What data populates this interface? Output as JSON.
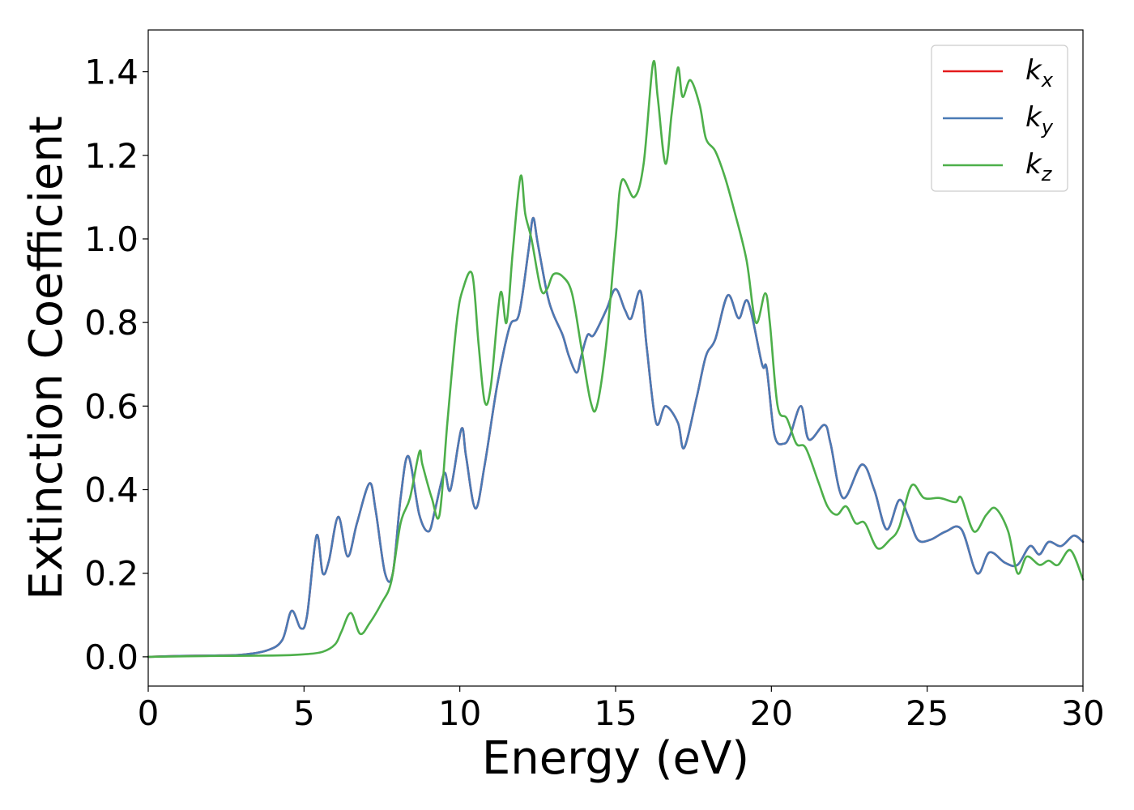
{
  "chart_data": {
    "type": "line",
    "xlabel": "Energy (eV)",
    "ylabel": "Extinction Coefficient",
    "xlim": [
      0,
      30
    ],
    "ylim": [
      -0.07,
      1.5
    ],
    "xticks": [
      0,
      5,
      10,
      15,
      20,
      25,
      30
    ],
    "xtick_labels": [
      "0",
      "5",
      "10",
      "15",
      "20",
      "25",
      "30"
    ],
    "yticks": [
      0.0,
      0.2,
      0.4,
      0.6,
      0.8,
      1.0,
      1.2,
      1.4
    ],
    "ytick_labels": [
      "0.0",
      "0.2",
      "0.4",
      "0.6",
      "0.8",
      "1.0",
      "1.2",
      "1.4"
    ],
    "grid": false,
    "legend_position": "top-right",
    "legend": [
      {
        "base": "k",
        "sub": "x",
        "color": "#e41a1c"
      },
      {
        "base": "k",
        "sub": "y",
        "color": "#4a7ab5"
      },
      {
        "base": "k",
        "sub": "z",
        "color": "#4daf4a"
      }
    ],
    "series": [
      {
        "key": "kx",
        "color": "#e41a1c",
        "x": [
          0,
          1,
          2,
          3,
          3.8,
          4.3,
          4.6,
          4.9,
          5.1,
          5.4,
          5.6,
          5.8,
          6.1,
          6.4,
          6.7,
          7.1,
          7.3,
          7.6,
          7.85,
          8.1,
          8.35,
          8.7,
          9.0,
          9.2,
          9.5,
          9.7,
          10.05,
          10.2,
          10.5,
          10.8,
          11.2,
          11.6,
          11.9,
          12.2,
          12.35,
          12.5,
          12.8,
          13.0,
          13.3,
          13.5,
          13.75,
          13.9,
          14.1,
          14.3,
          14.7,
          15.0,
          15.3,
          15.5,
          15.8,
          16.0,
          16.3,
          16.6,
          17.0,
          17.2,
          17.6,
          17.9,
          18.2,
          18.6,
          18.95,
          19.25,
          19.7,
          19.85,
          20.1,
          20.4,
          20.6,
          20.95,
          21.2,
          21.7,
          21.9,
          22.3,
          22.9,
          23.3,
          23.7,
          24.1,
          24.4,
          24.7,
          25.1,
          25.6,
          26.1,
          26.6,
          27.0,
          27.5,
          27.9,
          28.3,
          28.6,
          28.9,
          29.3,
          29.7,
          30.0
        ],
        "y": [
          0.0,
          0.002,
          0.003,
          0.005,
          0.015,
          0.04,
          0.11,
          0.068,
          0.1,
          0.29,
          0.2,
          0.23,
          0.335,
          0.24,
          0.32,
          0.415,
          0.35,
          0.2,
          0.2,
          0.38,
          0.48,
          0.34,
          0.3,
          0.35,
          0.44,
          0.4,
          0.545,
          0.48,
          0.355,
          0.46,
          0.65,
          0.79,
          0.82,
          0.97,
          1.05,
          0.99,
          0.87,
          0.82,
          0.77,
          0.72,
          0.68,
          0.72,
          0.77,
          0.77,
          0.83,
          0.88,
          0.83,
          0.81,
          0.875,
          0.74,
          0.56,
          0.6,
          0.56,
          0.5,
          0.62,
          0.72,
          0.76,
          0.865,
          0.81,
          0.85,
          0.7,
          0.69,
          0.53,
          0.51,
          0.53,
          0.6,
          0.52,
          0.555,
          0.51,
          0.38,
          0.46,
          0.4,
          0.305,
          0.375,
          0.335,
          0.28,
          0.28,
          0.3,
          0.305,
          0.2,
          0.25,
          0.225,
          0.22,
          0.265,
          0.245,
          0.275,
          0.265,
          0.29,
          0.275
        ]
      },
      {
        "key": "ky",
        "color": "#4a7ab5",
        "x": [
          0,
          1,
          2,
          3,
          3.8,
          4.3,
          4.6,
          4.9,
          5.1,
          5.4,
          5.6,
          5.8,
          6.1,
          6.4,
          6.7,
          7.1,
          7.3,
          7.6,
          7.85,
          8.1,
          8.35,
          8.7,
          9.0,
          9.2,
          9.5,
          9.7,
          10.05,
          10.2,
          10.5,
          10.8,
          11.2,
          11.6,
          11.9,
          12.2,
          12.35,
          12.5,
          12.8,
          13.0,
          13.3,
          13.5,
          13.75,
          13.9,
          14.1,
          14.3,
          14.7,
          15.0,
          15.3,
          15.5,
          15.8,
          16.0,
          16.3,
          16.6,
          17.0,
          17.2,
          17.6,
          17.9,
          18.2,
          18.6,
          18.95,
          19.25,
          19.7,
          19.85,
          20.1,
          20.4,
          20.6,
          20.95,
          21.2,
          21.7,
          21.9,
          22.3,
          22.9,
          23.3,
          23.7,
          24.1,
          24.4,
          24.7,
          25.1,
          25.6,
          26.1,
          26.6,
          27.0,
          27.5,
          27.9,
          28.3,
          28.6,
          28.9,
          29.3,
          29.7,
          30.0
        ],
        "y": [
          0.0,
          0.002,
          0.003,
          0.005,
          0.015,
          0.04,
          0.11,
          0.068,
          0.1,
          0.29,
          0.2,
          0.23,
          0.335,
          0.24,
          0.32,
          0.415,
          0.35,
          0.2,
          0.2,
          0.38,
          0.48,
          0.34,
          0.3,
          0.35,
          0.44,
          0.4,
          0.545,
          0.48,
          0.355,
          0.46,
          0.65,
          0.79,
          0.82,
          0.97,
          1.05,
          0.99,
          0.87,
          0.82,
          0.77,
          0.72,
          0.68,
          0.72,
          0.77,
          0.77,
          0.83,
          0.88,
          0.83,
          0.81,
          0.875,
          0.74,
          0.56,
          0.6,
          0.56,
          0.5,
          0.62,
          0.72,
          0.76,
          0.865,
          0.81,
          0.85,
          0.7,
          0.69,
          0.53,
          0.51,
          0.53,
          0.6,
          0.52,
          0.555,
          0.51,
          0.38,
          0.46,
          0.4,
          0.305,
          0.375,
          0.335,
          0.28,
          0.28,
          0.3,
          0.305,
          0.2,
          0.25,
          0.225,
          0.22,
          0.265,
          0.245,
          0.275,
          0.265,
          0.29,
          0.275
        ]
      },
      {
        "key": "kz",
        "color": "#4daf4a",
        "x": [
          0,
          2,
          4,
          5,
          5.6,
          6.0,
          6.2,
          6.5,
          6.8,
          7.1,
          7.5,
          7.8,
          8.1,
          8.4,
          8.7,
          8.8,
          9.1,
          9.35,
          9.6,
          9.9,
          10.1,
          10.4,
          10.6,
          10.8,
          11.0,
          11.3,
          11.5,
          11.7,
          11.95,
          12.1,
          12.3,
          12.6,
          12.8,
          13.0,
          13.3,
          13.6,
          13.9,
          14.2,
          14.4,
          14.7,
          15.0,
          15.2,
          15.6,
          15.9,
          16.2,
          16.35,
          16.6,
          16.8,
          17.0,
          17.15,
          17.4,
          17.7,
          17.9,
          18.2,
          18.5,
          18.8,
          19.2,
          19.5,
          19.8,
          19.95,
          20.2,
          20.5,
          20.8,
          21.1,
          21.5,
          21.8,
          22.1,
          22.4,
          22.7,
          23.0,
          23.4,
          23.8,
          24.1,
          24.5,
          24.9,
          25.4,
          25.9,
          26.1,
          26.5,
          26.9,
          27.2,
          27.6,
          27.9,
          28.2,
          28.6,
          28.9,
          29.2,
          29.6,
          30.0
        ],
        "y": [
          0.0,
          0.002,
          0.003,
          0.006,
          0.012,
          0.03,
          0.06,
          0.105,
          0.055,
          0.08,
          0.13,
          0.18,
          0.32,
          0.38,
          0.49,
          0.46,
          0.38,
          0.34,
          0.56,
          0.8,
          0.88,
          0.915,
          0.75,
          0.61,
          0.65,
          0.87,
          0.8,
          0.97,
          1.15,
          1.06,
          1.0,
          0.88,
          0.88,
          0.915,
          0.91,
          0.87,
          0.74,
          0.61,
          0.6,
          0.75,
          1.0,
          1.14,
          1.1,
          1.18,
          1.42,
          1.34,
          1.18,
          1.3,
          1.41,
          1.34,
          1.38,
          1.32,
          1.24,
          1.21,
          1.15,
          1.07,
          0.95,
          0.8,
          0.87,
          0.8,
          0.6,
          0.57,
          0.51,
          0.5,
          0.42,
          0.36,
          0.34,
          0.36,
          0.32,
          0.32,
          0.26,
          0.28,
          0.31,
          0.41,
          0.38,
          0.38,
          0.37,
          0.38,
          0.3,
          0.34,
          0.355,
          0.3,
          0.2,
          0.24,
          0.22,
          0.23,
          0.22,
          0.255,
          0.185
        ]
      }
    ]
  }
}
